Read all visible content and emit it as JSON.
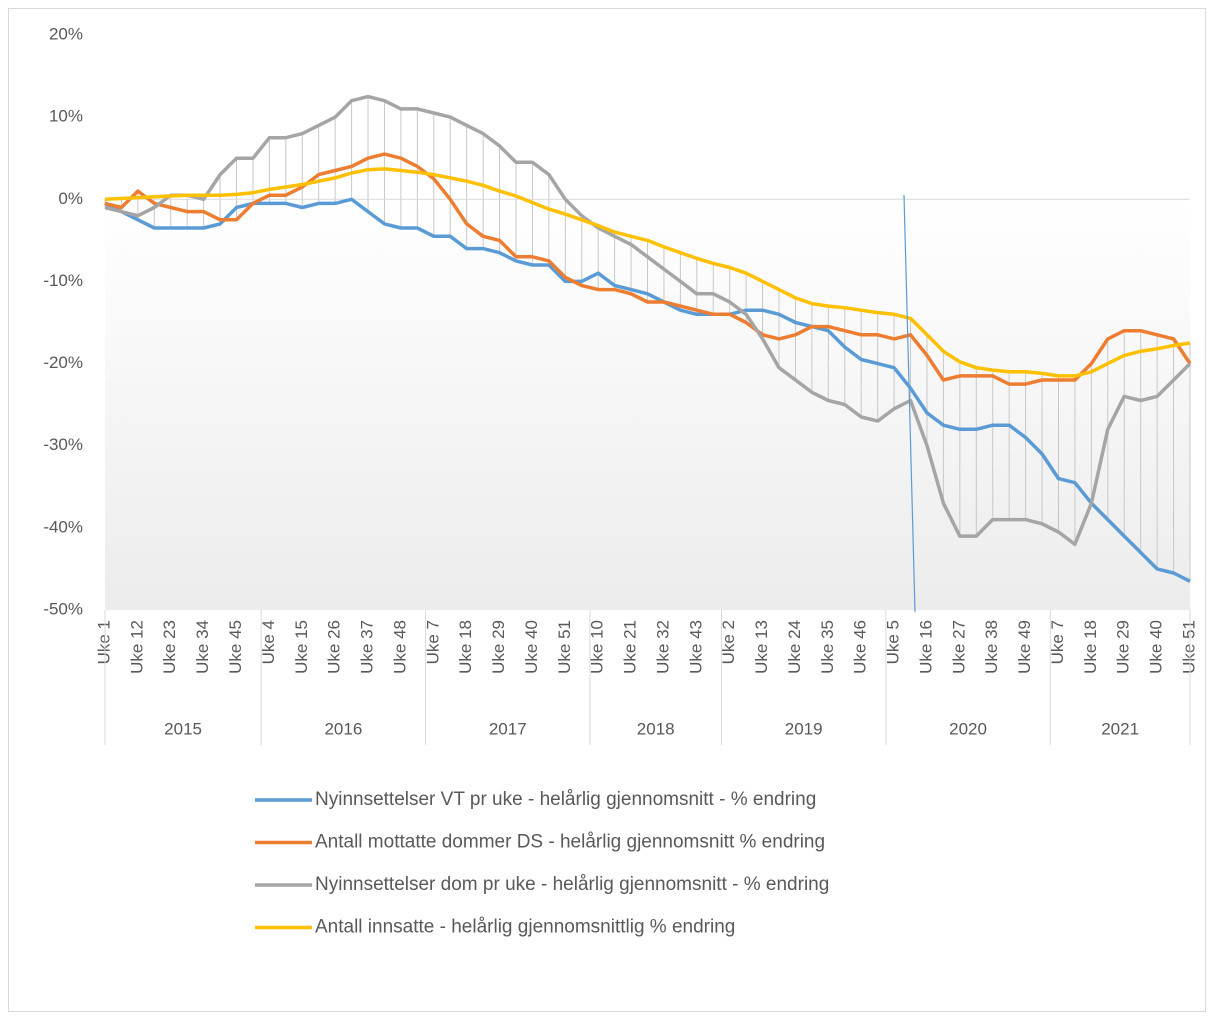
{
  "chart_data": {
    "type": "line",
    "ylim": [
      -50,
      20
    ],
    "yticks": [
      {
        "value": -50,
        "label": "-50%"
      },
      {
        "value": -40,
        "label": "-40%"
      },
      {
        "value": -30,
        "label": "-30%"
      },
      {
        "value": -20,
        "label": "-20%"
      },
      {
        "value": -10,
        "label": "-10%"
      },
      {
        "value": 0,
        "label": "0%"
      },
      {
        "value": 10,
        "label": "10%"
      },
      {
        "value": 20,
        "label": "20%"
      }
    ],
    "high_low_lines": true,
    "category_groups": [
      {
        "group": "2015",
        "categories": [
          "Uke 1",
          null,
          "Uke 12",
          null,
          "Uke 23",
          null,
          "Uke 34",
          null,
          "Uke 45",
          null
        ]
      },
      {
        "group": "2016",
        "categories": [
          "Uke 4",
          null,
          "Uke 15",
          null,
          "Uke 26",
          null,
          "Uke 37",
          null,
          "Uke 48",
          null
        ]
      },
      {
        "group": "2017",
        "categories": [
          "Uke 7",
          null,
          "Uke 18",
          null,
          "Uke 29",
          null,
          "Uke 40",
          null,
          "Uke 51",
          null
        ]
      },
      {
        "group": "2018",
        "categories": [
          "Uke 10",
          null,
          "Uke 21",
          null,
          "Uke 32",
          null,
          "Uke 43",
          null
        ]
      },
      {
        "group": "2019",
        "categories": [
          "Uke 2",
          null,
          "Uke 13",
          null,
          "Uke 24",
          null,
          "Uke 35",
          null,
          "Uke 46",
          null
        ]
      },
      {
        "group": "2020",
        "categories": [
          "Uke 5",
          null,
          "Uke 16",
          null,
          "Uke 27",
          null,
          "Uke 38",
          null,
          "Uke 49",
          null
        ]
      },
      {
        "group": "2021",
        "categories": [
          "Uke 7",
          null,
          "Uke 18",
          null,
          "Uke 29",
          null,
          "Uke 40",
          null,
          "Uke 51"
        ]
      }
    ],
    "series": [
      {
        "name": "Nyinnsettelser VT pr uke - helårlig gjennomsnitt - % endring",
        "color": "#5b9bd5",
        "values": [
          -0.5,
          -1.5,
          -2.5,
          -3.5,
          -3.5,
          -3.5,
          -3.5,
          -3,
          -1,
          -0.5,
          -0.5,
          -0.5,
          -1,
          -0.5,
          -0.5,
          0,
          -1.5,
          -3,
          -3.5,
          -3.5,
          -4.5,
          -4.5,
          -6,
          -6,
          -6.5,
          -7.5,
          -8,
          -8,
          -10,
          -10,
          -9,
          -10.5,
          -11,
          -11.5,
          -12.5,
          -13.5,
          -14,
          -14,
          -14,
          -13.5,
          -13.5,
          -14,
          -15,
          -15.5,
          -16,
          -18,
          -19.5,
          -20,
          -20.5,
          -23,
          -26,
          -27.5,
          -28,
          -28,
          -27.5,
          -27.5,
          -29,
          -31,
          -34,
          -34.5,
          -37,
          -39,
          -41,
          -43,
          -45,
          -45.5,
          -46.5
        ]
      },
      {
        "name": "Antall mottatte dommer DS - helårlig gjennomsnitt % endring",
        "color": "#ed7d31",
        "values": [
          -0.5,
          -1,
          1,
          -0.5,
          -1,
          -1.5,
          -1.5,
          -2.5,
          -2.5,
          -0.5,
          0.5,
          0.5,
          1.5,
          3,
          3.5,
          4,
          5,
          5.5,
          5,
          4,
          2.5,
          0,
          -3,
          -4.5,
          -5,
          -7,
          -7,
          -7.5,
          -9.5,
          -10.5,
          -11,
          -11,
          -11.5,
          -12.5,
          -12.5,
          -13,
          -13.5,
          -14,
          -14,
          -15,
          -16.5,
          -17,
          -16.5,
          -15.5,
          -15.5,
          -16,
          -16.5,
          -16.5,
          -17,
          -16.5,
          -19,
          -22,
          -21.5,
          -21.5,
          -21.5,
          -22.5,
          -22.5,
          -22,
          -22,
          -22,
          -20,
          -17,
          -16,
          -16,
          -16.5,
          -17,
          -20
        ]
      },
      {
        "name": "Nyinnsettelser dom pr uke - helårlig gjennomsnitt - % endring",
        "color": "#a5a5a5",
        "values": [
          -1,
          -1.5,
          -2,
          -1,
          0.5,
          0.5,
          0,
          3,
          5,
          5,
          7.5,
          7.5,
          8,
          9,
          10,
          12,
          12.5,
          12,
          11,
          11,
          10.5,
          10,
          9,
          8,
          6.5,
          4.5,
          4.5,
          3,
          0,
          -2,
          -3.5,
          -4.5,
          -5.5,
          -7,
          -8.5,
          -10,
          -11.5,
          -11.5,
          -12.5,
          -14,
          -17,
          -20.5,
          -22,
          -23.5,
          -24.5,
          -25,
          -26.5,
          -27,
          -25.5,
          -24.5,
          -30,
          -37,
          -41,
          -41,
          -39,
          -39,
          -39,
          -39.5,
          -40.5,
          -42,
          -37,
          -28,
          -24,
          -24.5,
          -24,
          -22,
          -20
        ]
      },
      {
        "name": "Antall innsatte - helårlig gjennomsnittlig % endring",
        "color": "#ffc000",
        "values": [
          0,
          0.1,
          0.2,
          0.3,
          0.4,
          0.5,
          0.5,
          0.5,
          0.6,
          0.8,
          1.2,
          1.5,
          1.8,
          2.2,
          2.6,
          3.2,
          3.6,
          3.7,
          3.5,
          3.3,
          3,
          2.6,
          2.2,
          1.7,
          1,
          0.4,
          -0.4,
          -1.2,
          -1.8,
          -2.5,
          -3.2,
          -4,
          -4.5,
          -5,
          -5.8,
          -6.5,
          -7.2,
          -7.8,
          -8.3,
          -9,
          -10,
          -11,
          -12,
          -12.7,
          -13,
          -13.2,
          -13.5,
          -13.8,
          -14,
          -14.5,
          -16.5,
          -18.5,
          -19.8,
          -20.5,
          -20.8,
          -21,
          -21,
          -21.2,
          -21.5,
          -21.5,
          -21,
          -20,
          -19,
          -18.5,
          -18.2,
          -17.8,
          -17.5
        ]
      }
    ]
  }
}
